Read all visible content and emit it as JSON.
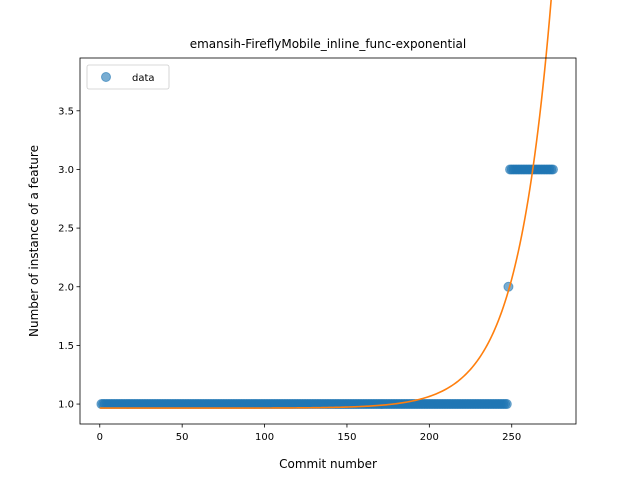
{
  "chart_data": {
    "type": "scatter",
    "title": "emansih-FireflyMobile_inline_func-exponential",
    "xlabel": "Commit number",
    "ylabel": "Number of instance of a feature",
    "xlim": [
      -12,
      289
    ],
    "ylim": [
      0.83,
      3.95
    ],
    "xticks": [
      0,
      50,
      100,
      150,
      200,
      250
    ],
    "yticks": [
      1.0,
      1.5,
      2.0,
      2.5,
      3.0,
      3.5
    ],
    "xtick_labels": [
      "0",
      "50",
      "100",
      "150",
      "200",
      "250"
    ],
    "ytick_labels": [
      "1.0",
      "1.5",
      "2.0",
      "2.5",
      "3.0",
      "3.5"
    ],
    "grid": false,
    "legend": {
      "position": "top-left",
      "entries": [
        "data"
      ]
    },
    "series": [
      {
        "name": "data",
        "kind": "scatter",
        "color": "#1f77b4",
        "segments": [
          {
            "x_start": 1,
            "x_end": 247,
            "y": 1
          },
          {
            "x_start": 248,
            "x_end": 248,
            "y": 2
          },
          {
            "x_start": 249,
            "x_end": 275,
            "y": 3
          }
        ]
      },
      {
        "name": "",
        "kind": "line",
        "color": "#ff7f0e",
        "model": "exponential",
        "x_range": [
          0,
          275
        ],
        "params": {
          "a": 6.6e-06,
          "b": 0.0481,
          "c": 0.9655
        }
      }
    ]
  }
}
